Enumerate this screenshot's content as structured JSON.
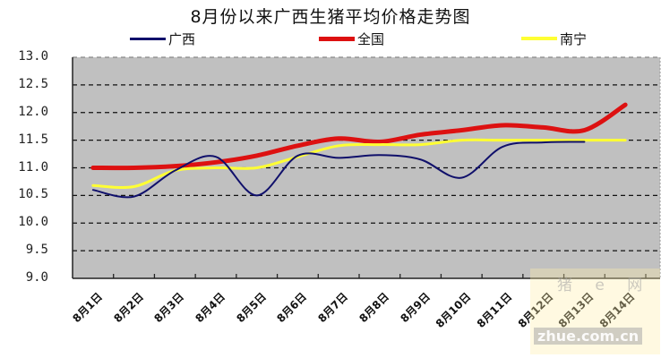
{
  "chart_data": {
    "type": "line",
    "title": "8月份以来广西生猪平均价格走势图",
    "xlabel": "",
    "ylabel": "",
    "ylim": [
      9.0,
      13.0
    ],
    "yticks": [
      "13.0",
      "12.5",
      "12.0",
      "11.5",
      "11.0",
      "10.5",
      "10.0",
      "9.5",
      "9.0"
    ],
    "grid": true,
    "legend_position": "top",
    "categories": [
      "8月1日",
      "8月2日",
      "8月3日",
      "8月4日",
      "8月5日",
      "8月6日",
      "8月7日",
      "8月8日",
      "8月9日",
      "8月10日",
      "8月11日",
      "8月12日",
      "8月13日",
      "8月14日"
    ],
    "series": [
      {
        "name": "广西",
        "color": "#10106b",
        "width": 2,
        "values": [
          10.6,
          10.48,
          10.95,
          11.2,
          10.5,
          11.22,
          11.18,
          11.23,
          11.15,
          10.82,
          11.38,
          11.46,
          11.47,
          null
        ]
      },
      {
        "name": "全国",
        "color": "#dd1111",
        "width": 5,
        "values": [
          11.0,
          11.0,
          11.03,
          11.1,
          11.22,
          11.4,
          11.53,
          11.47,
          11.6,
          11.68,
          11.77,
          11.73,
          11.68,
          12.14
        ]
      },
      {
        "name": "南宁",
        "color": "#ffff33",
        "width": 3,
        "values": [
          10.68,
          10.66,
          10.95,
          11.0,
          11.0,
          11.2,
          11.4,
          11.42,
          11.42,
          11.5,
          11.5,
          11.5,
          11.5,
          11.5
        ]
      }
    ]
  },
  "plot": {
    "background": "#c0c0c0"
  },
  "watermark": {
    "top": "猪 e 网",
    "bottom": "zhue.com.cn"
  }
}
